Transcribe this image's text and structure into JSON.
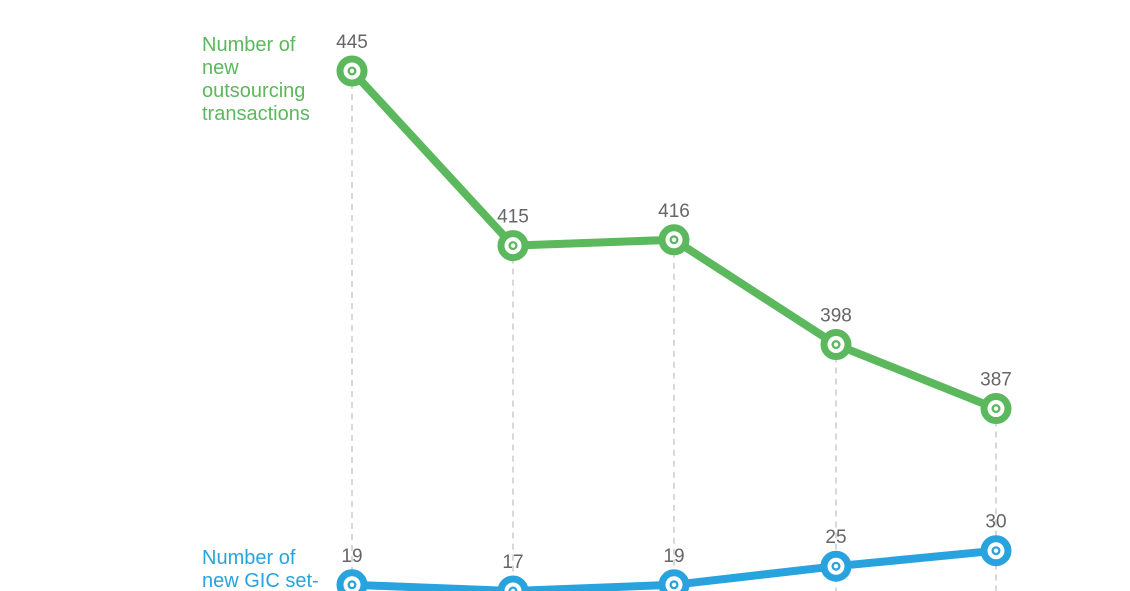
{
  "chart_data": {
    "type": "line",
    "title": "",
    "xlabel": "",
    "ylabel": "",
    "grid": false,
    "series": [
      {
        "name": "Number of new outsourcing transactions",
        "label_lines": [
          "Number of",
          "new",
          "outsourcing",
          "transactions"
        ],
        "color": "#5cb85c",
        "values": [
          445,
          415,
          416,
          398,
          387
        ]
      },
      {
        "name": "Number of new GIC set-",
        "label_lines": [
          "Number of",
          "new GIC set-"
        ],
        "color": "#29a3dd",
        "values": [
          19,
          17,
          19,
          25,
          30
        ]
      }
    ],
    "guide_color": "#cccccc",
    "value_label_color": "#666666"
  }
}
